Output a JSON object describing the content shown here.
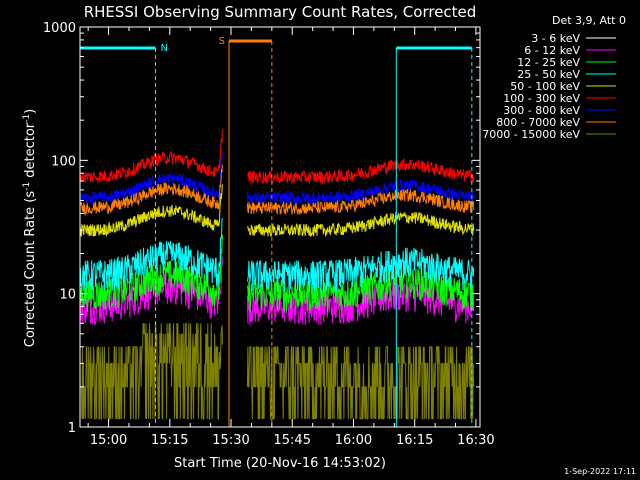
{
  "chart_data": {
    "type": "line",
    "title": "RHESSI Observing Summary Count Rates, Corrected",
    "xlabel": "Start Time (20-Nov-16 14:53:02)",
    "ylabel_main": "Corrected Count Rate (s",
    "ylabel_sup1": "-1",
    "ylabel_mid": " detector",
    "ylabel_sup2": "-1",
    "ylabel_end": ")",
    "y_scale": "log",
    "ylim": [
      1,
      1000
    ],
    "xlim_minutes": [
      53.0,
      151.0
    ],
    "x_ticks": [
      {
        "label": "15:00",
        "min": 60
      },
      {
        "label": "15:15",
        "min": 75
      },
      {
        "label": "15:30",
        "min": 90
      },
      {
        "label": "15:45",
        "min": 105
      },
      {
        "label": "16:00",
        "min": 120
      },
      {
        "label": "16:15",
        "min": 135
      },
      {
        "label": "16:30",
        "min": 150
      }
    ],
    "y_ticks": [
      {
        "label": "1",
        "value": 1
      },
      {
        "label": "10",
        "value": 10
      },
      {
        "label": "100",
        "value": 100
      },
      {
        "label": "1000",
        "value": 1000
      }
    ],
    "legend_header": "Det 3,9, Att 0",
    "series": [
      {
        "name": "3 - 6 keV",
        "color": "#000000",
        "base": 12
      },
      {
        "name": "6 - 12 keV",
        "color": "#ff00ff",
        "base": 8
      },
      {
        "name": "12 - 25 keV",
        "color": "#00ff00",
        "base": 10
      },
      {
        "name": "25 - 50 keV",
        "color": "#00ffff",
        "base": 14
      },
      {
        "name": "50 - 100 keV",
        "color": "#e0e000",
        "base": 30
      },
      {
        "name": "100 - 300 keV",
        "color": "#ff0000",
        "base": 75
      },
      {
        "name": "300 - 800 keV",
        "color": "#0000ff",
        "base": 52
      },
      {
        "name": "800 - 7000 keV",
        "color": "#ff8000",
        "base": 44
      },
      {
        "name": "7000 - 15000 keV",
        "color": "#808000",
        "base": 3
      }
    ],
    "data_gaps": [
      [
        88.0,
        94.0
      ]
    ],
    "night_intervals": [
      {
        "label": "N",
        "start": 53.0,
        "end": 71.5
      },
      {
        "label": "",
        "start": 130.5,
        "end": 149.0
      }
    ],
    "saa_intervals": [
      {
        "label": "S",
        "start": 89.5,
        "end": 100.0
      }
    ],
    "timestamp": "1-Sep-2022 17:11"
  }
}
